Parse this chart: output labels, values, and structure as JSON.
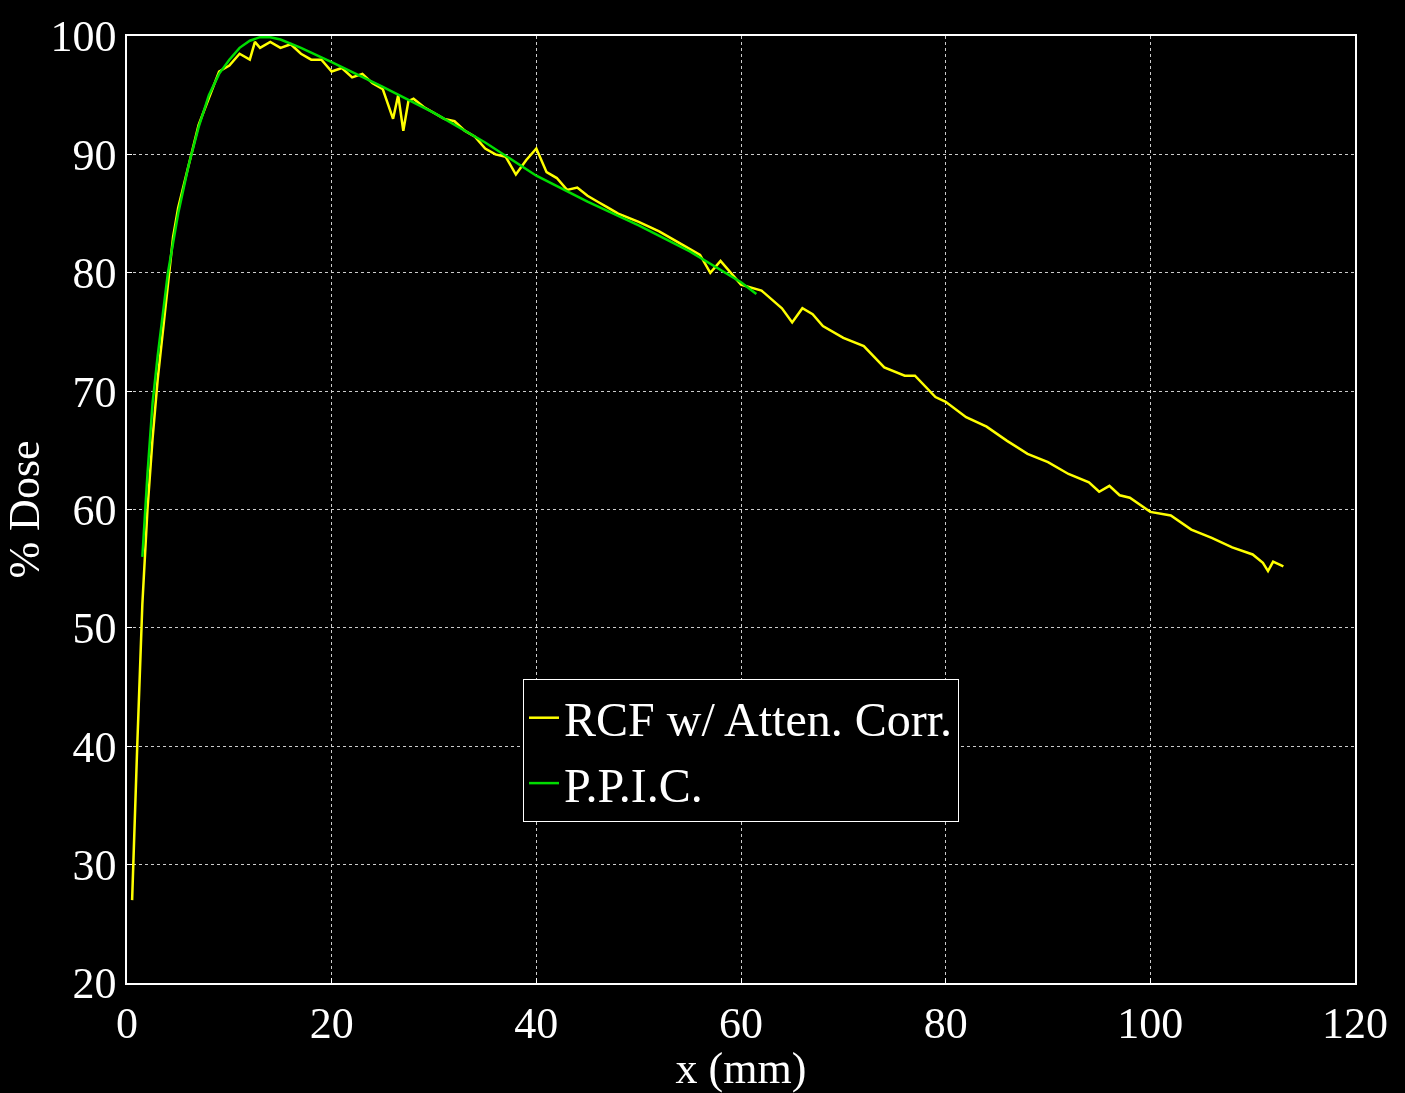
{
  "chart_data": {
    "type": "line",
    "xlabel": "x (mm)",
    "ylabel": "% Dose",
    "xlim": [
      0,
      120
    ],
    "xticks": [
      0,
      20,
      40,
      60,
      80,
      100,
      120
    ],
    "ylim": [
      20,
      100
    ],
    "yticks": [
      20,
      30,
      40,
      50,
      60,
      70,
      80,
      90,
      100
    ],
    "grid": true,
    "legend": "bottom",
    "line_style": "solid",
    "marker": "none",
    "series": [
      {
        "name": "RCF w/ Atten. Corr.",
        "color": "#ffff00",
        "x": [
          0.5,
          1,
          1.5,
          2,
          2.5,
          3,
          3.5,
          4,
          4.5,
          5,
          7,
          9,
          10,
          11,
          12,
          12.5,
          13,
          14,
          15,
          16,
          17,
          18,
          19,
          20,
          21,
          22,
          23,
          24,
          25,
          26,
          26.5,
          27,
          27.5,
          28,
          29,
          31,
          32,
          33,
          34,
          35,
          36,
          37,
          38,
          39,
          40,
          41,
          42,
          43,
          44,
          45,
          46,
          47,
          48,
          50,
          52,
          54,
          56,
          57,
          58,
          60,
          62,
          64,
          65,
          66,
          67,
          68,
          70,
          72,
          74,
          76,
          77,
          79,
          80,
          82,
          84,
          86,
          88,
          90,
          92,
          94,
          95,
          96,
          97,
          98,
          100,
          102,
          104,
          106,
          108,
          110,
          111,
          111.5,
          112,
          113
        ],
        "values": [
          27,
          40,
          52,
          60,
          66,
          71,
          75,
          79,
          83,
          85.5,
          92.5,
          97,
          97.5,
          98.5,
          98,
          99.5,
          99,
          99.5,
          99,
          99.3,
          98.5,
          98,
          98,
          97,
          97.3,
          96.5,
          96.8,
          96,
          95.5,
          93,
          95,
          92,
          94.5,
          94.7,
          94,
          93,
          92.8,
          92,
          91.5,
          90.5,
          90,
          89.8,
          88.3,
          89.5,
          90.5,
          88.5,
          88,
          87,
          87.2,
          86.5,
          86,
          85.5,
          85,
          84.3,
          83.5,
          82.5,
          81.5,
          80,
          81,
          79,
          78.5,
          77,
          75.8,
          77,
          76.5,
          75.5,
          74.5,
          73.8,
          72,
          71.3,
          71.3,
          69.5,
          69.1,
          67.8,
          67,
          65.8,
          64.7,
          64,
          63,
          62.3,
          61.5,
          62,
          61.2,
          61,
          59.8,
          59.5,
          58.3,
          57.6,
          56.8,
          56.2,
          55.5,
          54.8,
          55.6,
          55.2
        ]
      },
      {
        "name": "P.P.I.C.",
        "color": "#00dd00",
        "x": [
          1.5,
          2,
          2.5,
          3,
          4,
          5,
          6,
          7,
          8,
          9,
          10,
          11,
          12,
          13,
          14,
          15,
          17,
          20,
          25,
          30,
          35,
          40,
          45,
          50,
          55,
          60,
          61.5
        ],
        "values": [
          56,
          63,
          69,
          73,
          80,
          85,
          89,
          92.3,
          95,
          96.8,
          98,
          99,
          99.6,
          99.9,
          99.9,
          99.7,
          99,
          97.8,
          95.7,
          93.5,
          91,
          88.2,
          86,
          84,
          81.8,
          79.2,
          78.2
        ]
      }
    ]
  }
}
